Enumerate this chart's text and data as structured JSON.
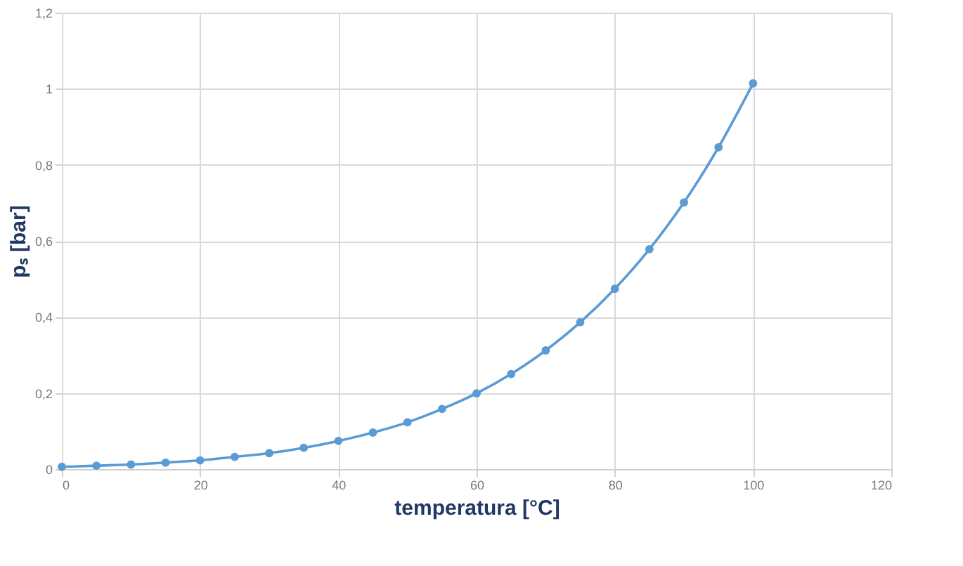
{
  "chart_data": {
    "type": "line",
    "xlabel": "temperatura [°C]",
    "ylabel": "pₛ [bar]",
    "x": [
      0,
      5,
      10,
      15,
      20,
      25,
      30,
      35,
      40,
      45,
      50,
      55,
      60,
      65,
      70,
      75,
      80,
      85,
      90,
      95,
      100
    ],
    "series": [
      {
        "color": "#5b9bd5",
        "values": [
          0.006,
          0.009,
          0.012,
          0.017,
          0.023,
          0.032,
          0.042,
          0.056,
          0.074,
          0.096,
          0.123,
          0.158,
          0.199,
          0.25,
          0.312,
          0.386,
          0.474,
          0.578,
          0.701,
          0.846,
          1.014
        ]
      }
    ],
    "xlim": [
      0,
      120
    ],
    "xticks": [
      0,
      20,
      40,
      60,
      80,
      100,
      120
    ],
    "ylim": [
      0,
      1.2
    ],
    "yticks": [
      0,
      {
        "value": 0.2,
        "label": "0,2"
      },
      {
        "value": 0.4,
        "label": "0,4"
      },
      {
        "value": 0.6,
        "label": "0,6"
      },
      {
        "value": 0.8,
        "label": "0,8"
      },
      1,
      {
        "value": 1.2,
        "label": "1,2"
      }
    ],
    "grid": true,
    "marker": "circle",
    "line_style": "solid"
  }
}
